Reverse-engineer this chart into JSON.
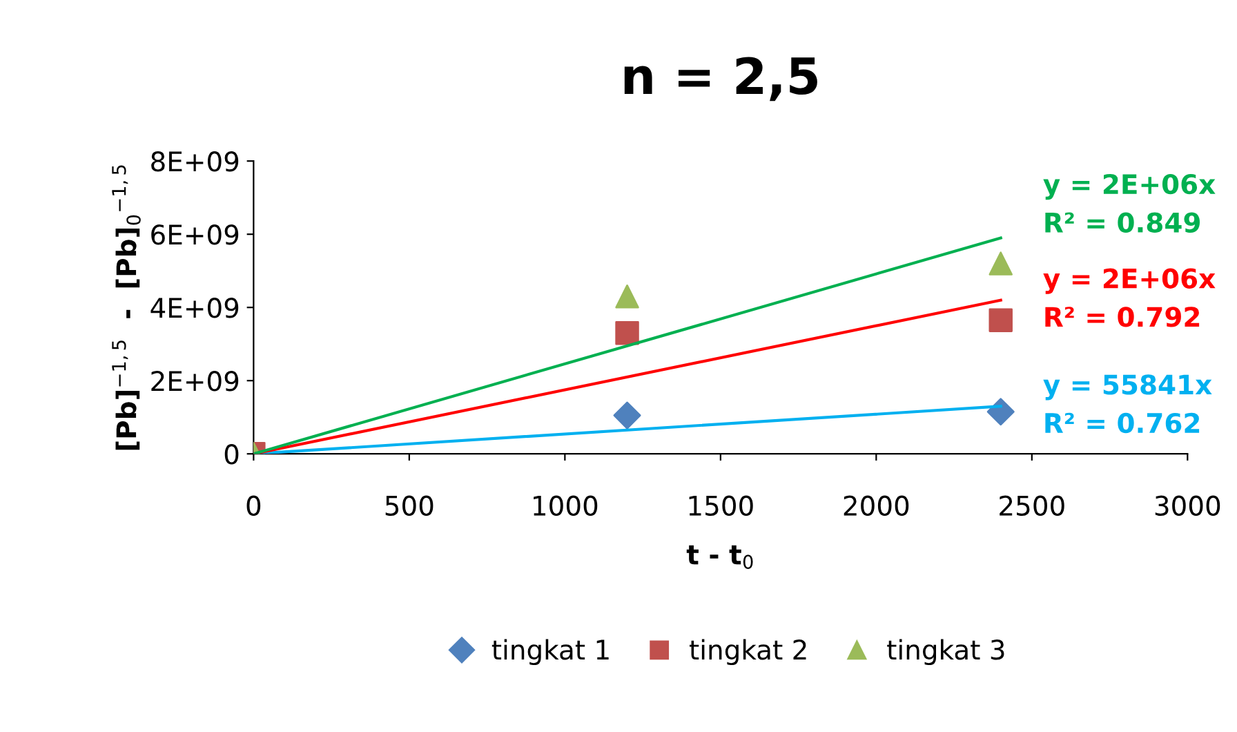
{
  "chart_data": {
    "type": "scatter",
    "title": "n = 2,5",
    "xlabel": "t - t$_{0}$",
    "ylabel": "[Pb]$^{−1,5}$  -  [Pb]$_{0}$$^{−1,5}$",
    "xlim": [
      0,
      3000
    ],
    "xticks": [
      0,
      500,
      1000,
      1500,
      2000,
      2500,
      3000
    ],
    "ylim": [
      0,
      8000000000
    ],
    "yticks": [
      {
        "value": 0,
        "label": "0"
      },
      {
        "value": 2000000000,
        "label": "2E+09"
      },
      {
        "value": 4000000000,
        "label": "4E+09"
      },
      {
        "value": 6000000000,
        "label": "6E+09"
      },
      {
        "value": 8000000000,
        "label": "8E+09"
      }
    ],
    "grid": false,
    "legend": "bottom",
    "series": [
      {
        "name": "tingkat 1",
        "color": "#4f81bd",
        "marker": "diamond",
        "x": [
          1200,
          2400
        ],
        "values": [
          1050000000,
          1150000000
        ]
      },
      {
        "name": "tingkat 2",
        "color": "#c0504d",
        "marker": "square",
        "x": [
          0,
          1200,
          2400
        ],
        "values": [
          0,
          3300000000,
          3650000000
        ]
      },
      {
        "name": "tingkat 3",
        "color": "#9bbb59",
        "marker": "triangle",
        "x": [
          0,
          1200,
          2400
        ],
        "values": [
          0,
          4300000000,
          5200000000
        ]
      },
      {
        "type": "line",
        "color": "#00b0f0",
        "x": [
          0,
          2400
        ],
        "values": [
          0,
          1300000000
        ]
      },
      {
        "type": "line",
        "color": "#ff0000",
        "x": [
          0,
          2400
        ],
        "values": [
          0,
          4200000000
        ]
      },
      {
        "type": "line",
        "color": "#00b050",
        "x": [
          0,
          2400
        ],
        "values": [
          0,
          5900000000
        ]
      }
    ],
    "annotations": [
      "y = 55841x\nR² = 0.762",
      "y = 2E+06x\nR² = 0.792",
      "y = 2E+06x\nR² = 0.849"
    ]
  }
}
